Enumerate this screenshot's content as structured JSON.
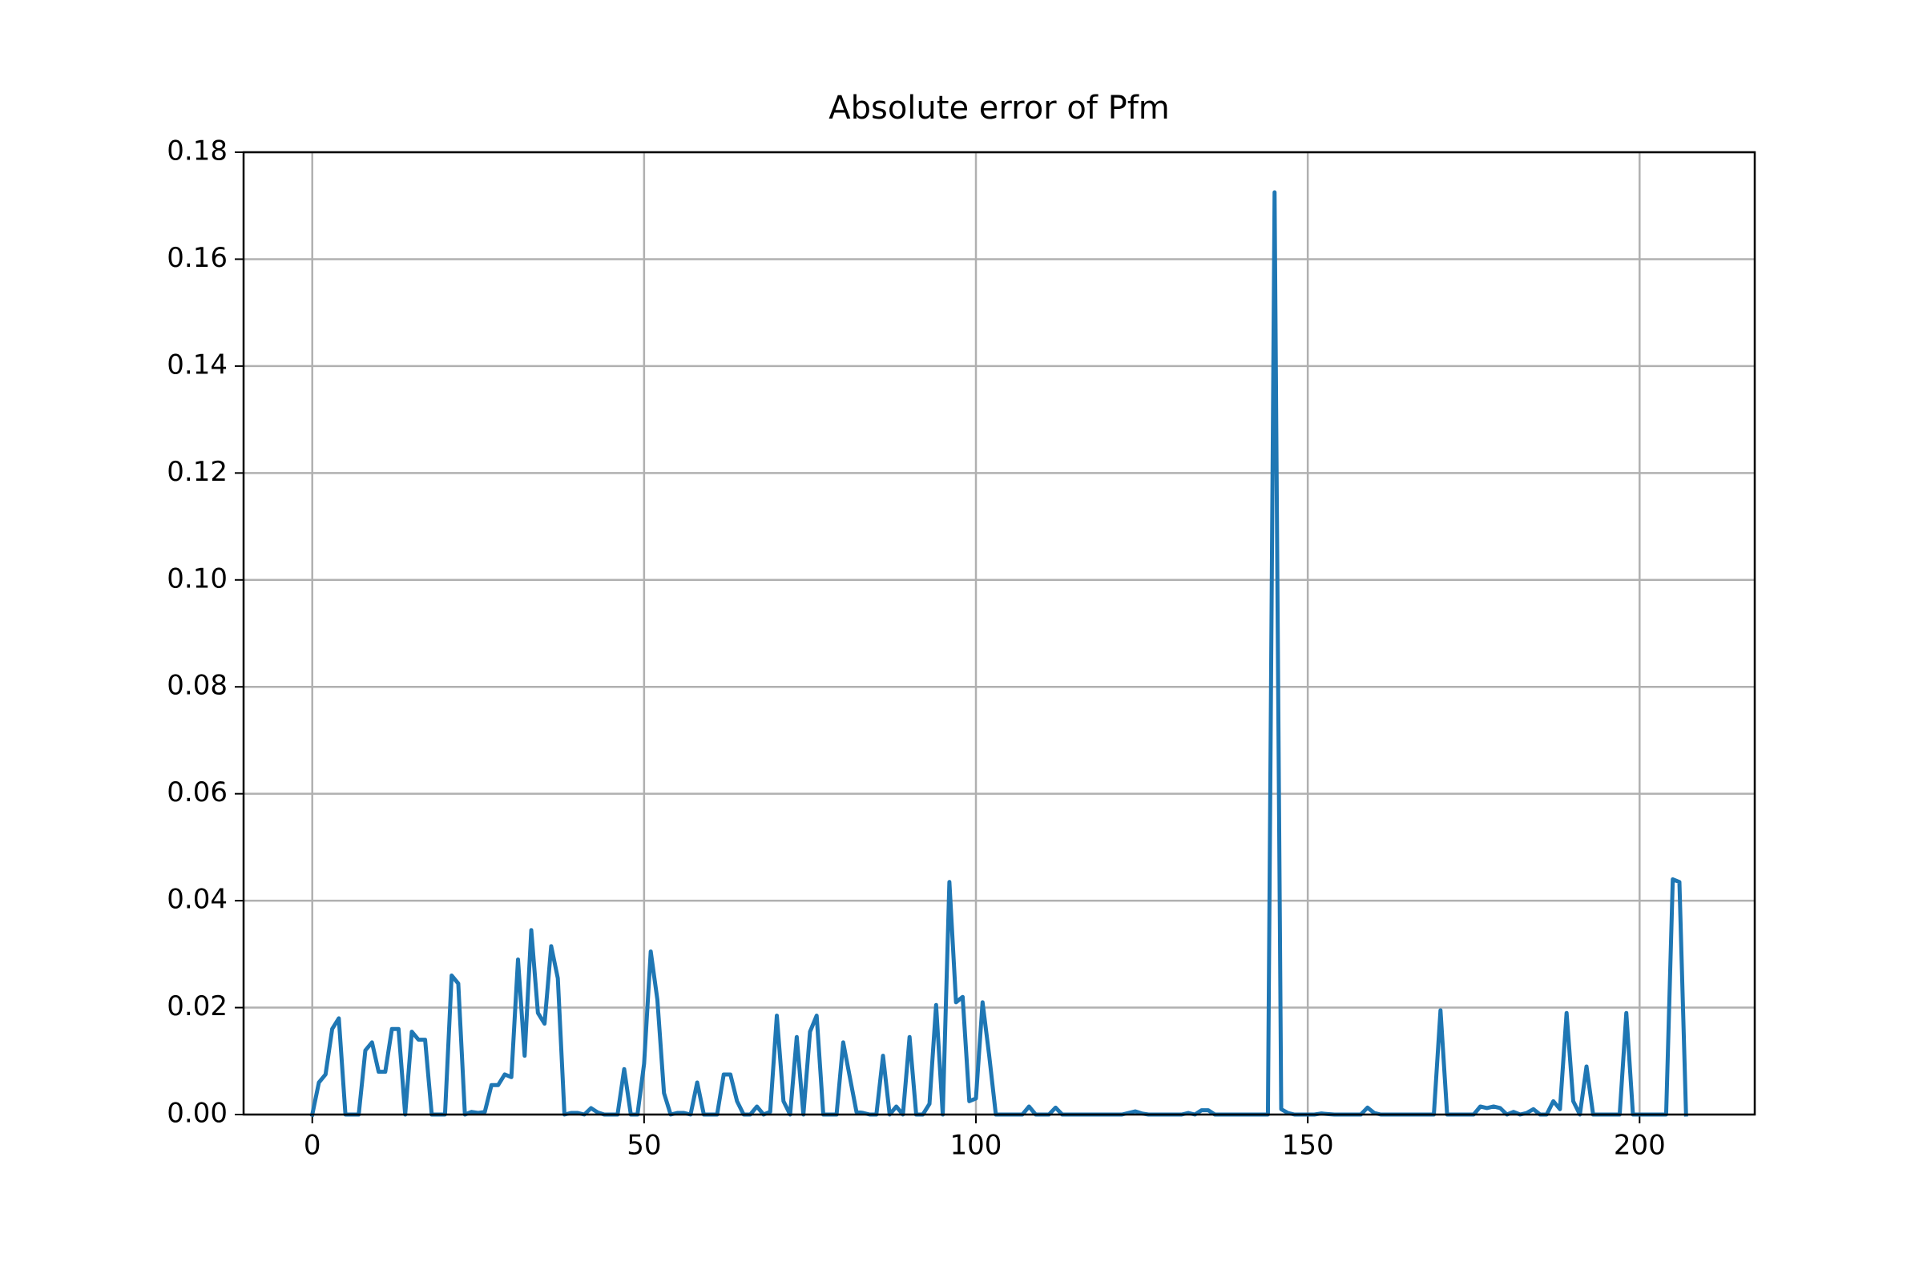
{
  "chart_data": {
    "type": "line",
    "title": "Absolute error of Pfm",
    "x": [
      0,
      1,
      2,
      3,
      4,
      5,
      6,
      7,
      8,
      9,
      10,
      11,
      12,
      13,
      14,
      15,
      16,
      17,
      18,
      19,
      20,
      21,
      22,
      23,
      24,
      25,
      26,
      27,
      28,
      29,
      30,
      31,
      32,
      33,
      34,
      35,
      36,
      37,
      38,
      39,
      40,
      41,
      42,
      43,
      44,
      45,
      46,
      47,
      48,
      49,
      50,
      51,
      52,
      53,
      54,
      55,
      56,
      57,
      58,
      59,
      60,
      61,
      62,
      63,
      64,
      65,
      66,
      67,
      68,
      69,
      70,
      71,
      72,
      73,
      74,
      75,
      76,
      77,
      78,
      79,
      80,
      81,
      82,
      83,
      84,
      85,
      86,
      87,
      88,
      89,
      90,
      91,
      92,
      93,
      94,
      95,
      96,
      97,
      98,
      99,
      100,
      101,
      102,
      103,
      104,
      105,
      106,
      107,
      108,
      109,
      110,
      111,
      112,
      113,
      114,
      115,
      116,
      117,
      118,
      119,
      120,
      121,
      122,
      123,
      124,
      125,
      126,
      127,
      128,
      129,
      130,
      131,
      132,
      133,
      134,
      135,
      136,
      137,
      138,
      139,
      140,
      141,
      142,
      143,
      144,
      145,
      146,
      147,
      148,
      149,
      150,
      151,
      152,
      153,
      154,
      155,
      156,
      157,
      158,
      159,
      160,
      161,
      162,
      163,
      164,
      165,
      166,
      167,
      168,
      169,
      170,
      171,
      172,
      173,
      174,
      175,
      176,
      177,
      178,
      179,
      180,
      181,
      182,
      183,
      184,
      185,
      186,
      187,
      188,
      189,
      190,
      191,
      192,
      193,
      194,
      195,
      196,
      197,
      198,
      199,
      200,
      201,
      202,
      203,
      204,
      205,
      206,
      207
    ],
    "values": [
      0,
      0.006,
      0.0075,
      0.016,
      0.018,
      0,
      0,
      0,
      0.012,
      0.0135,
      0.008,
      0.008,
      0.016,
      0.016,
      0,
      0.0155,
      0.014,
      0.014,
      0,
      0,
      0,
      0.026,
      0.0245,
      0,
      0.0005,
      0.0003,
      0.0005,
      0.0055,
      0.0055,
      0.0075,
      0.007,
      0.029,
      0.011,
      0.0345,
      0.019,
      0.017,
      0.0315,
      0.0255,
      0,
      0.0003,
      0.0003,
      0,
      0.0012,
      0.0004,
      0,
      0,
      0,
      0.0085,
      0,
      0,
      0.0095,
      0.0305,
      0.0215,
      0.004,
      0,
      0.0003,
      0.0003,
      0,
      0.006,
      0,
      0,
      0,
      0.0075,
      0.0075,
      0.0025,
      0,
      0,
      0.0015,
      0,
      0.0005,
      0.0185,
      0.0025,
      0,
      0.0145,
      0,
      0.0155,
      0.0185,
      0,
      0,
      0,
      0.0135,
      0.007,
      0.0005,
      0.0003,
      0,
      0,
      0.011,
      0,
      0.0015,
      0,
      0.0145,
      0,
      0,
      0.002,
      0.0205,
      0,
      0.0435,
      0.021,
      0.022,
      0.0025,
      0.003,
      0.021,
      0.011,
      0,
      0,
      0,
      0,
      0,
      0.0015,
      0,
      0,
      0,
      0.0013,
      0,
      0,
      0,
      0,
      0,
      0,
      0,
      0,
      0,
      0,
      0.0003,
      0.0006,
      0.0002,
      0,
      0,
      0,
      0,
      0,
      0,
      0.0003,
      0,
      0.0008,
      0.0008,
      0,
      0,
      0,
      0,
      0,
      0,
      0,
      0,
      0,
      0.1725,
      0.001,
      0.0003,
      0,
      0,
      0,
      0,
      0.0002,
      0.0001,
      0,
      0,
      0,
      0,
      0,
      0.0013,
      0.0003,
      0,
      0,
      0,
      0,
      0,
      0,
      0,
      0,
      0,
      0.0195,
      0,
      0,
      0,
      0,
      0,
      0.0015,
      0.0012,
      0.0015,
      0.0012,
      0,
      0.0005,
      0,
      0.0003,
      0.001,
      0,
      0,
      0.0025,
      0.001,
      0.019,
      0.0025,
      0,
      0.009,
      0,
      0,
      0,
      0,
      0,
      0.019,
      0,
      0,
      0,
      0,
      0,
      0,
      0.044,
      0.0435,
      0
    ],
    "color": "#1f77b4",
    "xlim": [
      -10.35,
      217.35
    ],
    "xticks": [
      0,
      50,
      100,
      150,
      200
    ],
    "ylim": [
      0,
      0.18
    ],
    "yticks": [
      {
        "value": 0,
        "label": "0.00"
      },
      0.02,
      0.04,
      0.06,
      0.08,
      {
        "value": 0.1,
        "label": "0.10"
      },
      0.12,
      0.14,
      0.16,
      0.18
    ],
    "grid": true
  }
}
